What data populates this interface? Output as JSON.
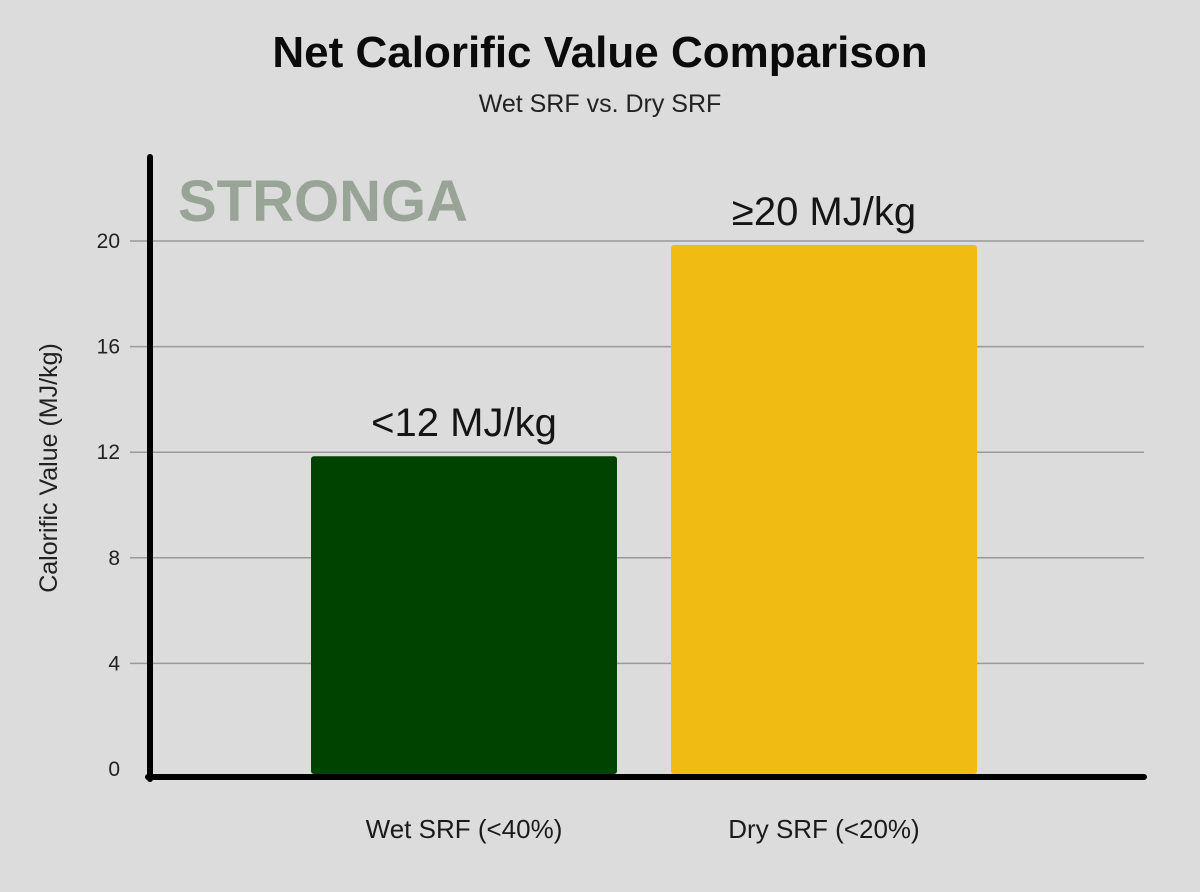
{
  "chart_data": {
    "type": "bar",
    "title": "Net Calorific Value Comparison",
    "subtitle": "Wet SRF vs. Dry SRF",
    "ylabel": "Calorific Value (MJ/kg)",
    "xlabel": "",
    "categories": [
      "Wet SRF (<40%)",
      "Dry SRF (<20%)"
    ],
    "values": [
      12,
      20
    ],
    "data_labels": [
      "<12 MJ/kg",
      "≥20 MJ/kg"
    ],
    "colors": [
      "#004200",
      "#f0bb12"
    ],
    "ylim": [
      0,
      20
    ],
    "yticks": [
      0,
      4,
      8,
      12,
      16,
      20
    ],
    "grid": true,
    "legend": "none",
    "watermark": "STRONGA"
  }
}
